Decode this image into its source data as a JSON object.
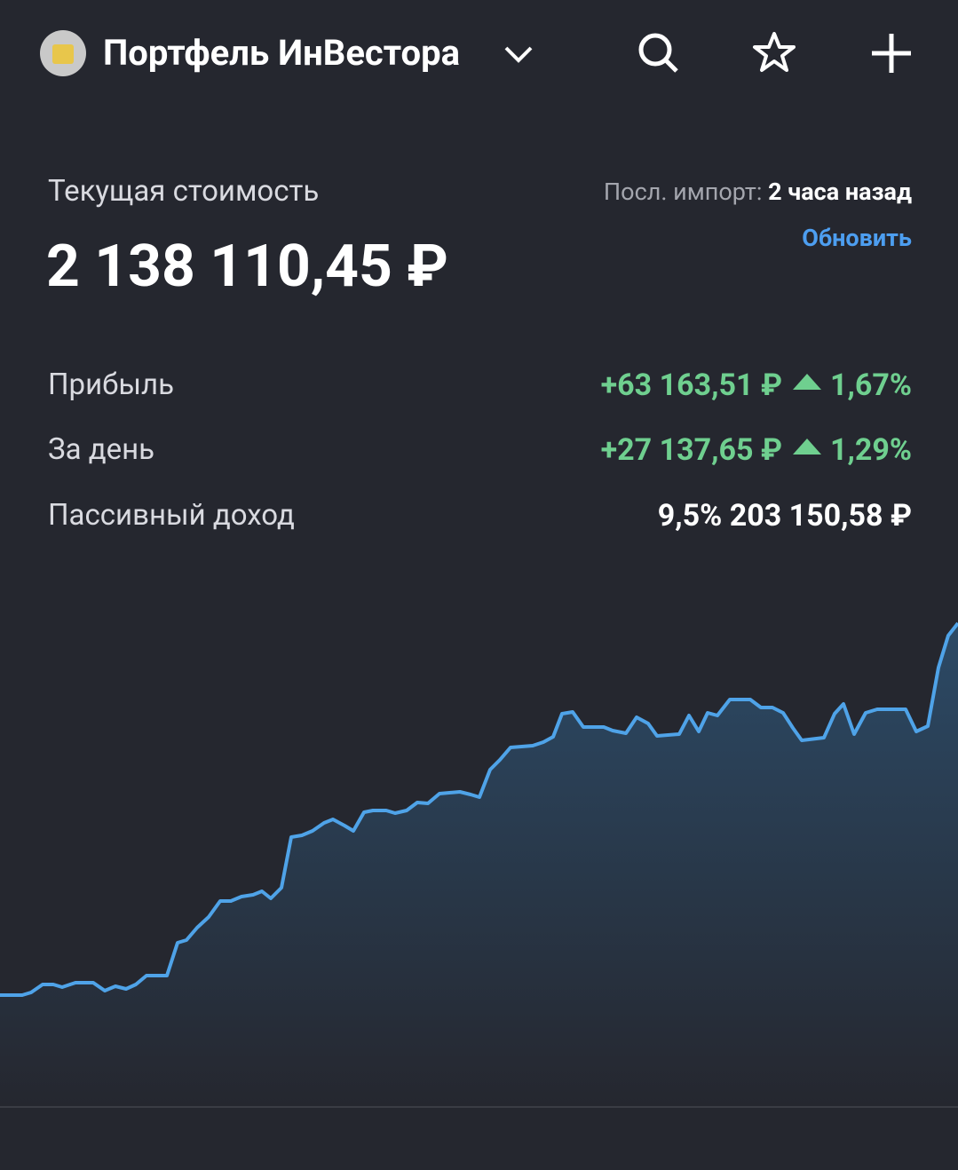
{
  "header": {
    "title": "Портфель ИнВестора"
  },
  "summary": {
    "label": "Текущая стоимость",
    "value": "2 138 110,45 ₽",
    "import_label": "Посл. импорт:",
    "import_time": "2 часа назад",
    "refresh": "Обновить"
  },
  "rows": [
    {
      "label": "Прибыль",
      "value": "+63 163,51 ₽",
      "percent": "1,67%"
    },
    {
      "label": "За день",
      "value": "+27 137,65 ₽",
      "percent": "1,29%"
    }
  ],
  "passive": {
    "label": "Пассивный доход",
    "percent": "9,5%",
    "value": "203 150,58 ₽"
  }
}
